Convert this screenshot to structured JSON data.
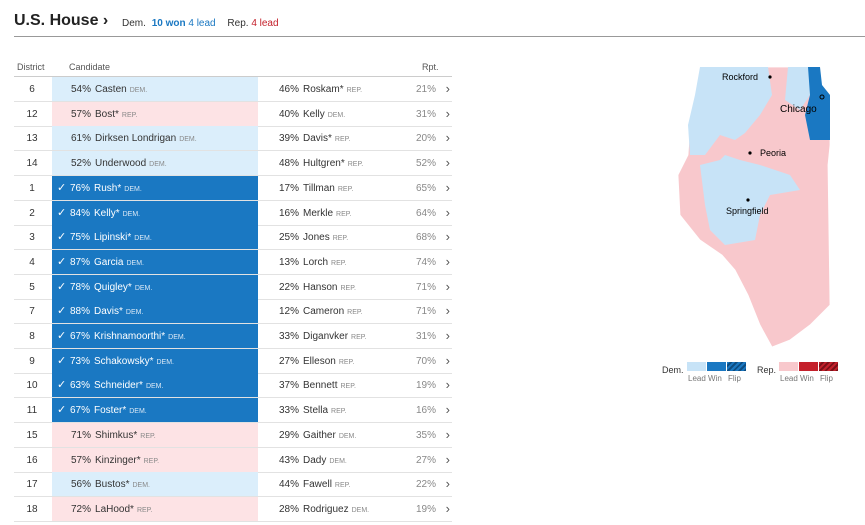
{
  "header": {
    "title": "U.S. House",
    "dem_label": "Dem.",
    "dem_won": "10 won",
    "dem_lead": "4 lead",
    "rep_label": "Rep.",
    "rep_lead": "4 lead"
  },
  "table": {
    "columns": [
      "District",
      "Candidate",
      "Rpt."
    ],
    "rows": [
      {
        "district": "6",
        "fill": "#dbeefb",
        "won": false,
        "winner": {
          "pct": "54%",
          "name": "Casten",
          "party": "DEM."
        },
        "loser": {
          "pct": "46%",
          "name": "Roskam*",
          "party": "REP."
        },
        "rpt": "21%"
      },
      {
        "district": "12",
        "fill": "#fde3e5",
        "won": false,
        "winner": {
          "pct": "57%",
          "name": "Bost*",
          "party": "REP."
        },
        "loser": {
          "pct": "40%",
          "name": "Kelly",
          "party": "DEM."
        },
        "rpt": "31%"
      },
      {
        "district": "13",
        "fill": "#dbeefb",
        "won": false,
        "winner": {
          "pct": "61%",
          "name": "Dirksen Londrigan",
          "party": "DEM."
        },
        "loser": {
          "pct": "39%",
          "name": "Davis*",
          "party": "REP."
        },
        "rpt": "20%"
      },
      {
        "district": "14",
        "fill": "#dbeefb",
        "won": false,
        "winner": {
          "pct": "52%",
          "name": "Underwood",
          "party": "DEM."
        },
        "loser": {
          "pct": "48%",
          "name": "Hultgren*",
          "party": "REP."
        },
        "rpt": "52%"
      },
      {
        "district": "1",
        "fill": "#1a78c2",
        "won": true,
        "winner": {
          "pct": "76%",
          "name": "Rush*",
          "party": "DEM."
        },
        "loser": {
          "pct": "17%",
          "name": "Tillman",
          "party": "REP."
        },
        "rpt": "65%"
      },
      {
        "district": "2",
        "fill": "#1a78c2",
        "won": true,
        "winner": {
          "pct": "84%",
          "name": "Kelly*",
          "party": "DEM."
        },
        "loser": {
          "pct": "16%",
          "name": "Merkle",
          "party": "REP."
        },
        "rpt": "64%"
      },
      {
        "district": "3",
        "fill": "#1a78c2",
        "won": true,
        "winner": {
          "pct": "75%",
          "name": "Lipinski*",
          "party": "DEM."
        },
        "loser": {
          "pct": "25%",
          "name": "Jones",
          "party": "REP."
        },
        "rpt": "68%"
      },
      {
        "district": "4",
        "fill": "#1a78c2",
        "won": true,
        "winner": {
          "pct": "87%",
          "name": "Garcia",
          "party": "DEM."
        },
        "loser": {
          "pct": "13%",
          "name": "Lorch",
          "party": "REP."
        },
        "rpt": "74%"
      },
      {
        "district": "5",
        "fill": "#1a78c2",
        "won": true,
        "winner": {
          "pct": "78%",
          "name": "Quigley*",
          "party": "DEM."
        },
        "loser": {
          "pct": "22%",
          "name": "Hanson",
          "party": "REP."
        },
        "rpt": "71%"
      },
      {
        "district": "7",
        "fill": "#1a78c2",
        "won": true,
        "winner": {
          "pct": "88%",
          "name": "Davis*",
          "party": "DEM."
        },
        "loser": {
          "pct": "12%",
          "name": "Cameron",
          "party": "REP."
        },
        "rpt": "71%"
      },
      {
        "district": "8",
        "fill": "#1a78c2",
        "won": true,
        "winner": {
          "pct": "67%",
          "name": "Krishnamoorthi*",
          "party": "DEM."
        },
        "loser": {
          "pct": "33%",
          "name": "Diganvker",
          "party": "REP."
        },
        "rpt": "31%"
      },
      {
        "district": "9",
        "fill": "#1a78c2",
        "won": true,
        "winner": {
          "pct": "73%",
          "name": "Schakowsky*",
          "party": "DEM."
        },
        "loser": {
          "pct": "27%",
          "name": "Elleson",
          "party": "REP."
        },
        "rpt": "70%"
      },
      {
        "district": "10",
        "fill": "#1a78c2",
        "won": true,
        "winner": {
          "pct": "63%",
          "name": "Schneider*",
          "party": "DEM."
        },
        "loser": {
          "pct": "37%",
          "name": "Bennett",
          "party": "REP."
        },
        "rpt": "19%"
      },
      {
        "district": "11",
        "fill": "#1a78c2",
        "won": true,
        "winner": {
          "pct": "67%",
          "name": "Foster*",
          "party": "DEM."
        },
        "loser": {
          "pct": "33%",
          "name": "Stella",
          "party": "REP."
        },
        "rpt": "16%"
      },
      {
        "district": "15",
        "fill": "#fde3e5",
        "won": false,
        "winner": {
          "pct": "71%",
          "name": "Shimkus*",
          "party": "REP."
        },
        "loser": {
          "pct": "29%",
          "name": "Gaither",
          "party": "DEM."
        },
        "rpt": "35%"
      },
      {
        "district": "16",
        "fill": "#fde3e5",
        "won": false,
        "winner": {
          "pct": "57%",
          "name": "Kinzinger*",
          "party": "REP."
        },
        "loser": {
          "pct": "43%",
          "name": "Dady",
          "party": "DEM."
        },
        "rpt": "27%"
      },
      {
        "district": "17",
        "fill": "#dbeefb",
        "won": false,
        "winner": {
          "pct": "56%",
          "name": "Bustos*",
          "party": "DEM."
        },
        "loser": {
          "pct": "44%",
          "name": "Fawell",
          "party": "REP."
        },
        "rpt": "22%"
      },
      {
        "district": "18",
        "fill": "#fde3e5",
        "won": false,
        "winner": {
          "pct": "72%",
          "name": "LaHood*",
          "party": "REP."
        },
        "loser": {
          "pct": "28%",
          "name": "Rodriguez",
          "party": "DEM."
        },
        "rpt": "19%"
      }
    ]
  },
  "map": {
    "cities": [
      "Rockford",
      "Chicago",
      "Peoria",
      "Springfield"
    ]
  },
  "legend": {
    "dem": "Dem.",
    "rep": "Rep.",
    "dem_items": [
      "Lead",
      "Win",
      "Flip"
    ],
    "rep_items": [
      "Lead",
      "Win",
      "Flip"
    ]
  }
}
